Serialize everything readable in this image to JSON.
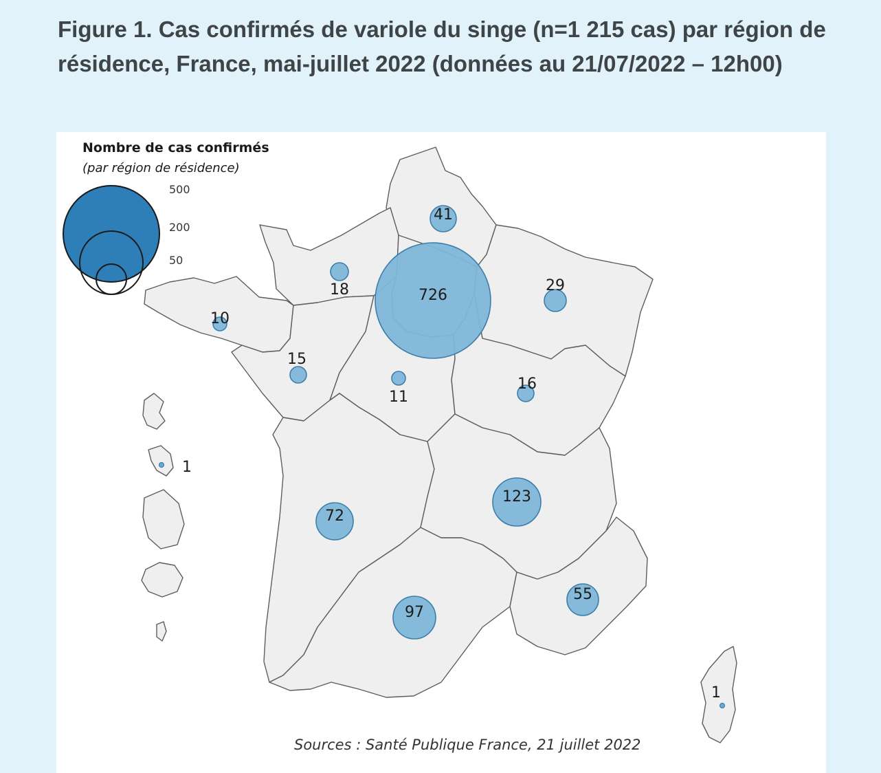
{
  "title": "Figure 1. Cas confirmés de variole du singe (n=1 215 cas) par région de résidence, France, mai-juillet 2022 (données au 21/07/2022 – 12h00)",
  "legend": {
    "title": "Nombre de cas confirmés",
    "subtitle": "(par région de résidence)",
    "ticks": [
      "500",
      "200",
      "50"
    ]
  },
  "regions": [
    {
      "name": "Hauts-de-France",
      "cases": "41"
    },
    {
      "name": "Normandie",
      "cases": "18"
    },
    {
      "name": "Île-de-France",
      "cases": "726"
    },
    {
      "name": "Grand Est",
      "cases": "29"
    },
    {
      "name": "Bretagne",
      "cases": "10"
    },
    {
      "name": "Pays de la Loire",
      "cases": "15"
    },
    {
      "name": "Centre-Val de Loire",
      "cases": "11"
    },
    {
      "name": "Bourgogne-Franche-Comté",
      "cases": "16"
    },
    {
      "name": "Nouvelle-Aquitaine",
      "cases": "72"
    },
    {
      "name": "Auvergne-Rhône-Alpes",
      "cases": "123"
    },
    {
      "name": "Occitanie",
      "cases": "97"
    },
    {
      "name": "Provence-Alpes-Côte d'Azur",
      "cases": "55"
    },
    {
      "name": "Corse",
      "cases": "1"
    },
    {
      "name": "Martinique",
      "cases": "1"
    }
  ],
  "source": "Sources : Santé Publique France, 21 juillet 2022",
  "colors": {
    "background": "#e1f2fa",
    "bubble": "#7fb6d8",
    "legend_bubble": "#2e7fb8",
    "region_fill": "#efefef"
  }
}
